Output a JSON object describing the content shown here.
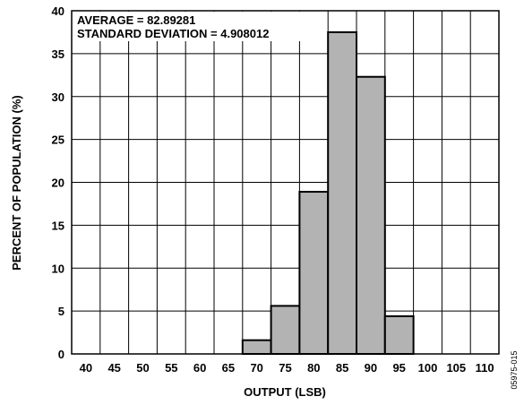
{
  "chart_data": {
    "type": "bar",
    "xlabel": "OUTPUT (LSB)",
    "ylabel": "PERCENT OF POPULATION (%)",
    "xlim": [
      37.5,
      112.5
    ],
    "ylim": [
      0,
      40
    ],
    "x_ticks": [
      40,
      45,
      50,
      55,
      60,
      65,
      70,
      75,
      80,
      85,
      90,
      95,
      100,
      105,
      110
    ],
    "y_ticks": [
      0,
      5,
      10,
      15,
      20,
      25,
      30,
      35,
      40
    ],
    "bins": [
      {
        "from": 67.5,
        "to": 72.5,
        "value": 1.6
      },
      {
        "from": 72.5,
        "to": 77.5,
        "value": 5.6
      },
      {
        "from": 77.5,
        "to": 82.5,
        "value": 18.9
      },
      {
        "from": 82.5,
        "to": 87.5,
        "value": 37.5
      },
      {
        "from": 87.5,
        "to": 92.5,
        "value": 32.3
      },
      {
        "from": 92.5,
        "to": 97.5,
        "value": 4.4
      }
    ],
    "annotations": [
      "AVERAGE = 82.89281",
      "STANDARD DEVIATION = 4.908012"
    ],
    "grid": true,
    "bar_color": "#b3b3b3"
  },
  "figure_id": "05975-015"
}
